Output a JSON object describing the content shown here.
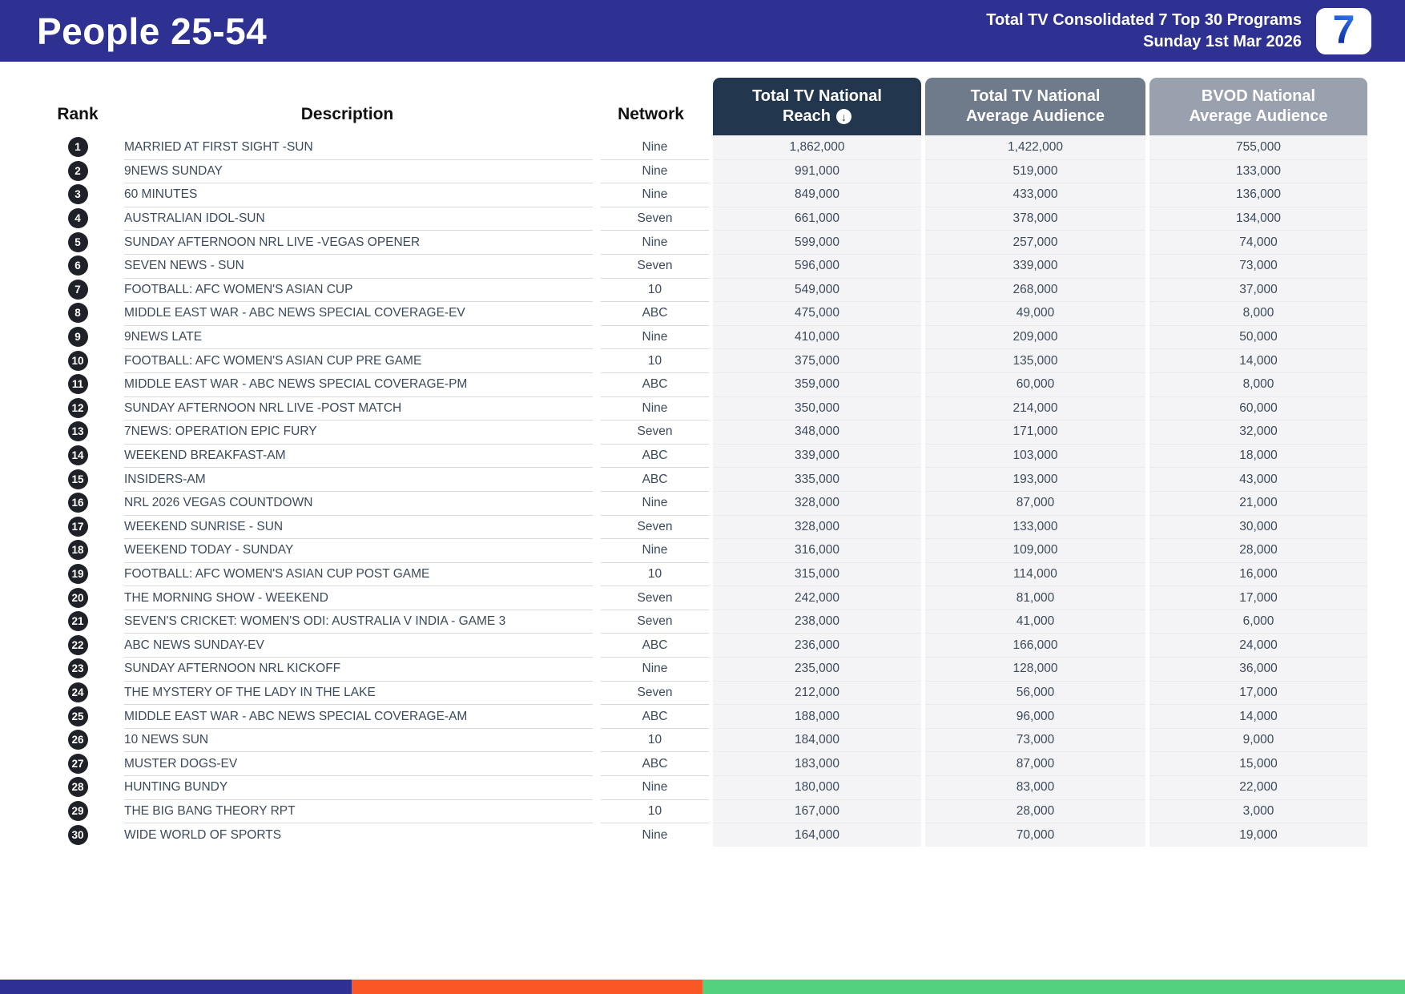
{
  "header": {
    "title": "People 25-54",
    "subtitle_line1": "Total TV Consolidated 7 Top 30 Programs",
    "subtitle_line2": "Sunday 1st Mar 2026",
    "logo_text": "7"
  },
  "table": {
    "columns": {
      "rank": "Rank",
      "description": "Description",
      "network": "Network",
      "reach": {
        "line1": "Total TV National",
        "line2": "Reach"
      },
      "avg": {
        "line1": "Total TV National",
        "line2": "Average Audience"
      },
      "bvod": {
        "line1": "BVOD National",
        "line2": "Average Audience"
      }
    },
    "sort_indicator": "↓",
    "rows": [
      {
        "rank": "1",
        "description": "MARRIED AT FIRST SIGHT -SUN",
        "network": "Nine",
        "reach": "1,862,000",
        "avg_audience": "1,422,000",
        "bvod_audience": "755,000"
      },
      {
        "rank": "2",
        "description": "9NEWS SUNDAY",
        "network": "Nine",
        "reach": "991,000",
        "avg_audience": "519,000",
        "bvod_audience": "133,000"
      },
      {
        "rank": "3",
        "description": "60 MINUTES",
        "network": "Nine",
        "reach": "849,000",
        "avg_audience": "433,000",
        "bvod_audience": "136,000"
      },
      {
        "rank": "4",
        "description": "AUSTRALIAN IDOL-SUN",
        "network": "Seven",
        "reach": "661,000",
        "avg_audience": "378,000",
        "bvod_audience": "134,000"
      },
      {
        "rank": "5",
        "description": "SUNDAY AFTERNOON NRL LIVE -VEGAS OPENER",
        "network": "Nine",
        "reach": "599,000",
        "avg_audience": "257,000",
        "bvod_audience": "74,000"
      },
      {
        "rank": "6",
        "description": "SEVEN NEWS - SUN",
        "network": "Seven",
        "reach": "596,000",
        "avg_audience": "339,000",
        "bvod_audience": "73,000"
      },
      {
        "rank": "7",
        "description": "FOOTBALL: AFC WOMEN'S ASIAN CUP",
        "network": "10",
        "reach": "549,000",
        "avg_audience": "268,000",
        "bvod_audience": "37,000"
      },
      {
        "rank": "8",
        "description": "MIDDLE EAST WAR - ABC NEWS SPECIAL COVERAGE-EV",
        "network": "ABC",
        "reach": "475,000",
        "avg_audience": "49,000",
        "bvod_audience": "8,000"
      },
      {
        "rank": "9",
        "description": "9NEWS LATE",
        "network": "Nine",
        "reach": "410,000",
        "avg_audience": "209,000",
        "bvod_audience": "50,000"
      },
      {
        "rank": "10",
        "description": "FOOTBALL: AFC WOMEN'S ASIAN CUP PRE GAME",
        "network": "10",
        "reach": "375,000",
        "avg_audience": "135,000",
        "bvod_audience": "14,000"
      },
      {
        "rank": "11",
        "description": "MIDDLE EAST WAR - ABC NEWS SPECIAL COVERAGE-PM",
        "network": "ABC",
        "reach": "359,000",
        "avg_audience": "60,000",
        "bvod_audience": "8,000"
      },
      {
        "rank": "12",
        "description": "SUNDAY AFTERNOON NRL LIVE -POST MATCH",
        "network": "Nine",
        "reach": "350,000",
        "avg_audience": "214,000",
        "bvod_audience": "60,000"
      },
      {
        "rank": "13",
        "description": "7NEWS: OPERATION EPIC FURY",
        "network": "Seven",
        "reach": "348,000",
        "avg_audience": "171,000",
        "bvod_audience": "32,000"
      },
      {
        "rank": "14",
        "description": "WEEKEND BREAKFAST-AM",
        "network": "ABC",
        "reach": "339,000",
        "avg_audience": "103,000",
        "bvod_audience": "18,000"
      },
      {
        "rank": "15",
        "description": "INSIDERS-AM",
        "network": "ABC",
        "reach": "335,000",
        "avg_audience": "193,000",
        "bvod_audience": "43,000"
      },
      {
        "rank": "16",
        "description": "NRL 2026 VEGAS COUNTDOWN",
        "network": "Nine",
        "reach": "328,000",
        "avg_audience": "87,000",
        "bvod_audience": "21,000"
      },
      {
        "rank": "17",
        "description": "WEEKEND SUNRISE - SUN",
        "network": "Seven",
        "reach": "328,000",
        "avg_audience": "133,000",
        "bvod_audience": "30,000"
      },
      {
        "rank": "18",
        "description": "WEEKEND TODAY - SUNDAY",
        "network": "Nine",
        "reach": "316,000",
        "avg_audience": "109,000",
        "bvod_audience": "28,000"
      },
      {
        "rank": "19",
        "description": "FOOTBALL: AFC WOMEN'S ASIAN CUP POST GAME",
        "network": "10",
        "reach": "315,000",
        "avg_audience": "114,000",
        "bvod_audience": "16,000"
      },
      {
        "rank": "20",
        "description": "THE MORNING SHOW - WEEKEND",
        "network": "Seven",
        "reach": "242,000",
        "avg_audience": "81,000",
        "bvod_audience": "17,000"
      },
      {
        "rank": "21",
        "description": "SEVEN'S CRICKET: WOMEN'S ODI: AUSTRALIA V INDIA - GAME 3",
        "network": "Seven",
        "reach": "238,000",
        "avg_audience": "41,000",
        "bvod_audience": "6,000"
      },
      {
        "rank": "22",
        "description": "ABC NEWS SUNDAY-EV",
        "network": "ABC",
        "reach": "236,000",
        "avg_audience": "166,000",
        "bvod_audience": "24,000"
      },
      {
        "rank": "23",
        "description": "SUNDAY AFTERNOON NRL KICKOFF",
        "network": "Nine",
        "reach": "235,000",
        "avg_audience": "128,000",
        "bvod_audience": "36,000"
      },
      {
        "rank": "24",
        "description": "THE MYSTERY OF THE LADY IN THE LAKE",
        "network": "Seven",
        "reach": "212,000",
        "avg_audience": "56,000",
        "bvod_audience": "17,000"
      },
      {
        "rank": "25",
        "description": "MIDDLE EAST WAR - ABC NEWS SPECIAL COVERAGE-AM",
        "network": "ABC",
        "reach": "188,000",
        "avg_audience": "96,000",
        "bvod_audience": "14,000"
      },
      {
        "rank": "26",
        "description": "10 NEWS SUN",
        "network": "10",
        "reach": "184,000",
        "avg_audience": "73,000",
        "bvod_audience": "9,000"
      },
      {
        "rank": "27",
        "description": "MUSTER DOGS-EV",
        "network": "ABC",
        "reach": "183,000",
        "avg_audience": "87,000",
        "bvod_audience": "15,000"
      },
      {
        "rank": "28",
        "description": "HUNTING BUNDY",
        "network": "Nine",
        "reach": "180,000",
        "avg_audience": "83,000",
        "bvod_audience": "22,000"
      },
      {
        "rank": "29",
        "description": "THE BIG BANG THEORY RPT",
        "network": "10",
        "reach": "167,000",
        "avg_audience": "28,000",
        "bvod_audience": "3,000"
      },
      {
        "rank": "30",
        "description": "WIDE WORLD OF SPORTS",
        "network": "Nine",
        "reach": "164,000",
        "avg_audience": "70,000",
        "bvod_audience": "19,000"
      }
    ]
  },
  "footer": {
    "stripe_colors": [
      "#2e3192",
      "#f95826",
      "#53d17f"
    ]
  },
  "colors": {
    "banner_bg": "#2e3192",
    "reach_header_bg": "#22374e",
    "avg_header_bg": "#6f7a8b",
    "bvod_header_bg": "#9aa1ae",
    "row_text": "#3c4a5a",
    "numeric_column_bg": "#f4f4f6",
    "rank_badge_bg": "#1e2127",
    "logo_seven_blue": "#1747bb"
  }
}
